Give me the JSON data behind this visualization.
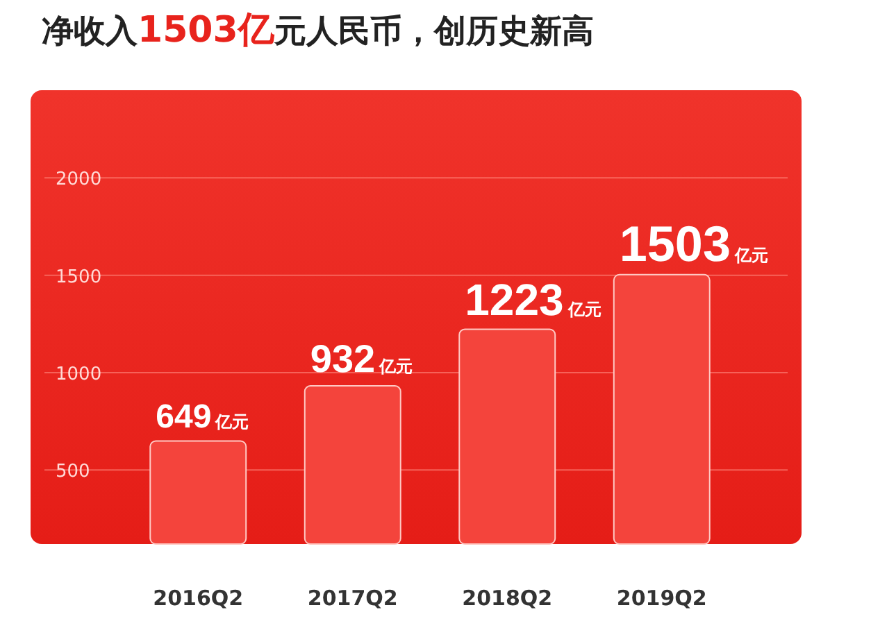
{
  "chart_data": {
    "type": "bar",
    "title": "净收入**1503亿**元人民币，创历史新高",
    "categories": [
      "2016Q2",
      "2017Q2",
      "2018Q2",
      "2019Q2"
    ],
    "values": [
      649,
      932,
      1223,
      1503
    ],
    "value_labels": [
      "649亿元",
      "932亿元",
      "1223亿元",
      "1503亿元"
    ],
    "color": "#f4443c",
    "ylim": [
      120,
      2450
    ],
    "yticks": [
      500,
      1000,
      1500,
      2000
    ],
    "grid": "y"
  }
}
